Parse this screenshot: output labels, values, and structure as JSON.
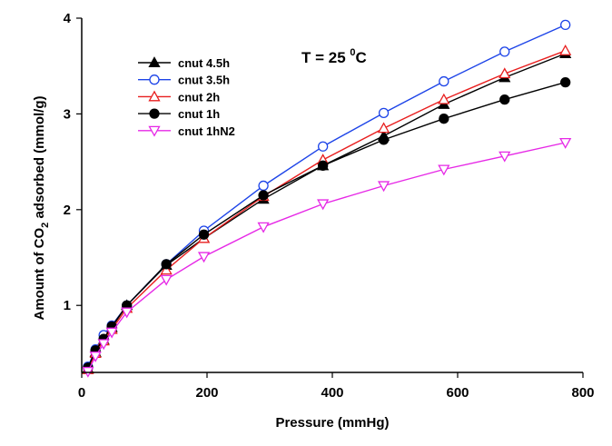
{
  "chart_data": {
    "type": "line",
    "title": "",
    "xlabel": "Pressure (mmHg)",
    "ylabel_parts": {
      "pre": "Amount of CO",
      "sub": "2",
      "post": " adsorbed (mmol/g)"
    },
    "xlim": [
      0,
      800
    ],
    "ylim": [
      0.3,
      4
    ],
    "xticks": [
      "0",
      "200",
      "400",
      "600",
      "800"
    ],
    "yticks": [
      "1",
      "2",
      "3",
      "4"
    ],
    "annotation": {
      "pre": "T = 25 ",
      "sup": "0",
      "post": "C"
    },
    "legend_position": "top-left",
    "grid": false,
    "series": [
      {
        "name": "cnut 4.5h",
        "color": "#000000",
        "marker": "triangle-up",
        "filled": true,
        "points": [
          [
            10,
            0.34
          ],
          [
            22,
            0.51
          ],
          [
            35,
            0.64
          ],
          [
            48,
            0.77
          ],
          [
            72,
            1.0
          ],
          [
            135,
            1.42
          ],
          [
            195,
            1.7
          ],
          [
            290,
            2.11
          ],
          [
            385,
            2.46
          ],
          [
            482,
            2.77
          ],
          [
            578,
            3.1
          ],
          [
            675,
            3.38
          ],
          [
            772,
            3.63
          ]
        ]
      },
      {
        "name": "cnut 3.5h",
        "color": "#1d44e8",
        "marker": "circle",
        "filled": false,
        "points": [
          [
            10,
            0.36
          ],
          [
            22,
            0.54
          ],
          [
            35,
            0.69
          ],
          [
            48,
            0.79
          ],
          [
            72,
            1.0
          ],
          [
            135,
            1.43
          ],
          [
            195,
            1.78
          ],
          [
            290,
            2.25
          ],
          [
            385,
            2.66
          ],
          [
            482,
            3.01
          ],
          [
            578,
            3.34
          ],
          [
            675,
            3.65
          ],
          [
            772,
            3.93
          ]
        ]
      },
      {
        "name": "cnut 2h",
        "color": "#e81f1f",
        "marker": "triangle-up",
        "filled": false,
        "points": [
          [
            10,
            0.33
          ],
          [
            22,
            0.5
          ],
          [
            35,
            0.63
          ],
          [
            48,
            0.75
          ],
          [
            72,
            0.97
          ],
          [
            135,
            1.37
          ],
          [
            195,
            1.7
          ],
          [
            290,
            2.14
          ],
          [
            385,
            2.52
          ],
          [
            482,
            2.85
          ],
          [
            578,
            3.15
          ],
          [
            675,
            3.42
          ],
          [
            772,
            3.66
          ]
        ]
      },
      {
        "name": "cnut 1h",
        "color": "#000000",
        "marker": "circle",
        "filled": true,
        "points": [
          [
            10,
            0.35
          ],
          [
            22,
            0.53
          ],
          [
            35,
            0.65
          ],
          [
            48,
            0.78
          ],
          [
            72,
            1.0
          ],
          [
            135,
            1.43
          ],
          [
            195,
            1.74
          ],
          [
            290,
            2.15
          ],
          [
            385,
            2.46
          ],
          [
            482,
            2.73
          ],
          [
            578,
            2.95
          ],
          [
            675,
            3.15
          ],
          [
            772,
            3.33
          ]
        ]
      },
      {
        "name": "cnut 1hN2",
        "color": "#e628e6",
        "marker": "triangle-down",
        "filled": false,
        "points": [
          [
            10,
            0.31
          ],
          [
            22,
            0.47
          ],
          [
            35,
            0.6
          ],
          [
            48,
            0.72
          ],
          [
            72,
            0.93
          ],
          [
            135,
            1.27
          ],
          [
            195,
            1.51
          ],
          [
            290,
            1.82
          ],
          [
            385,
            2.06
          ],
          [
            482,
            2.25
          ],
          [
            578,
            2.42
          ],
          [
            675,
            2.56
          ],
          [
            772,
            2.7
          ]
        ]
      }
    ]
  }
}
